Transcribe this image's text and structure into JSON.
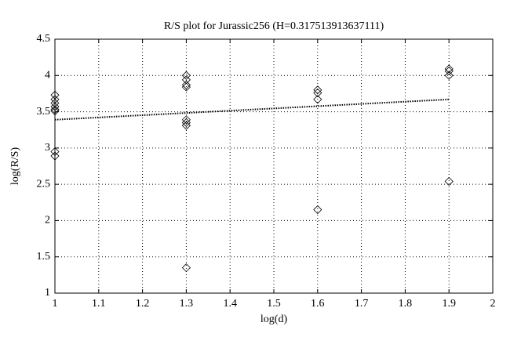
{
  "chart_data": {
    "type": "scatter",
    "title": "R/S plot for Jurassic256 (H=0.317513913637111)",
    "xlabel": "log(d)",
    "ylabel": "log(R/S)",
    "x": [
      1,
      1,
      1,
      1,
      1,
      1,
      1,
      1,
      1.3,
      1.3,
      1.3,
      1.3,
      1.3,
      1.3,
      1.3,
      1.3,
      1.6,
      1.6,
      1.6,
      1.6,
      1.9,
      1.9,
      1.9,
      1.9
    ],
    "y": [
      3.73,
      3.67,
      3.62,
      3.57,
      3.53,
      3.51,
      2.95,
      2.89,
      4.0,
      3.94,
      3.87,
      3.84,
      3.39,
      3.35,
      3.31,
      1.35,
      3.8,
      3.76,
      3.67,
      2.15,
      4.09,
      4.06,
      4.0,
      2.54
    ],
    "color": "#000000",
    "fit": {
      "x": [
        1,
        1.9
      ],
      "y": [
        3.39,
        3.67
      ]
    },
    "xlim": [
      1,
      2
    ],
    "ylim": [
      1,
      4.5
    ],
    "xticks": [
      1,
      1.1,
      1.2,
      1.3,
      1.4,
      1.5,
      1.6,
      1.7,
      1.8,
      1.9,
      2
    ],
    "yticks": [
      1,
      1.5,
      2,
      2.5,
      3,
      3.5,
      4,
      4.5
    ],
    "grid": true
  }
}
